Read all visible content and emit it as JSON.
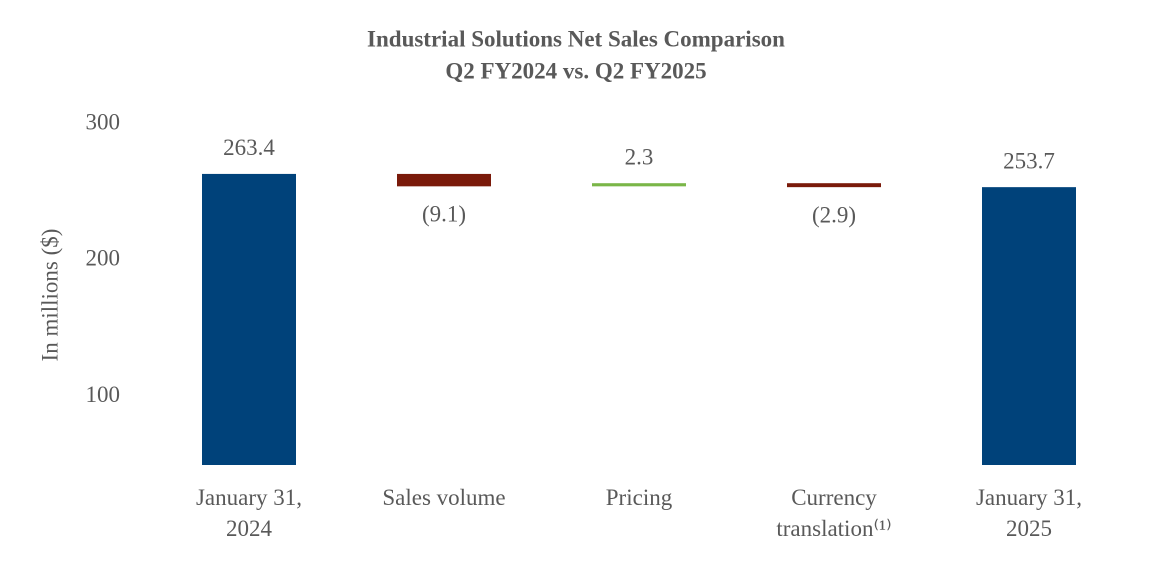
{
  "chart_data": {
    "type": "waterfall",
    "title": "Industrial Solutions Net Sales Comparison",
    "subtitle": "Q2 FY2024 vs. Q2 FY2025",
    "y_label": "In millions ($)",
    "categories": [
      "January 31, 2024",
      "Sales volume",
      "Pricing",
      "Currency translation⁽¹⁾",
      "January 31, 2025"
    ],
    "values": [
      263.4,
      -9.1,
      2.3,
      -2.9,
      253.7
    ],
    "value_labels": [
      "263.4",
      "(9.1)",
      "2.3",
      "(2.9)",
      "253.7"
    ],
    "colors": {
      "total": "#00427a",
      "increase": "#7ab648",
      "decrease": "#7a1a0a"
    },
    "ylim": [
      50,
      300
    ],
    "yticks": [
      100,
      200,
      300
    ],
    "grid": false
  }
}
